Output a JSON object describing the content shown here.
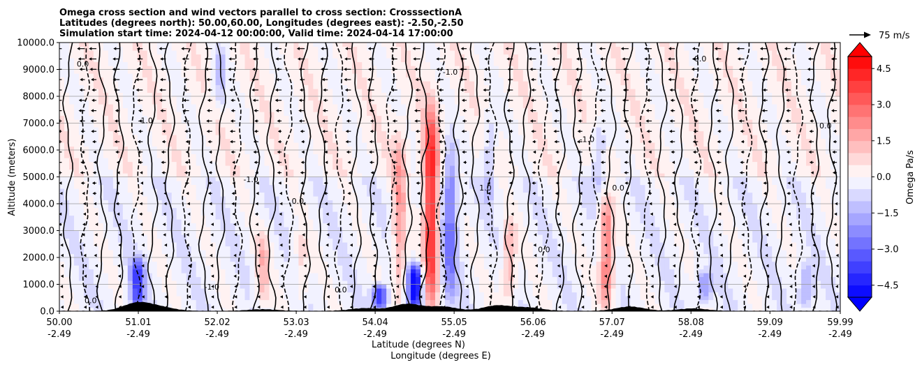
{
  "chart_data": {
    "type": "heatmap",
    "title_lines": [
      "Omega cross section and wind vectors parallel to cross section: CrosssectionA",
      "Latitudes (degrees north): 50.00,60.00, Longitudes (degrees east): -2.50,-2.50",
      "Simulation start time: 2024-04-12 00:00:00, Valid time: 2024-04-14 17:00:00"
    ],
    "ylabel": "Altitude (meters)",
    "xlabel_lines": [
      "Latitude (degrees N)",
      "Longitude (degrees E)"
    ],
    "ylim": [
      0,
      10000
    ],
    "xlim": [
      50.0,
      59.99
    ],
    "y_ticks": [
      {
        "value": 0,
        "label": "0.0"
      },
      {
        "value": 1000,
        "label": "1000.0"
      },
      {
        "value": 2000,
        "label": "2000.0"
      },
      {
        "value": 3000,
        "label": "3000.0"
      },
      {
        "value": 4000,
        "label": "4000.0"
      },
      {
        "value": 5000,
        "label": "5000.0"
      },
      {
        "value": 6000,
        "label": "6000.0"
      },
      {
        "value": 7000,
        "label": "7000.0"
      },
      {
        "value": 8000,
        "label": "8000.0"
      },
      {
        "value": 9000,
        "label": "9000.0"
      },
      {
        "value": 10000,
        "label": "10000.0"
      }
    ],
    "x_ticks": [
      {
        "value": 50.0,
        "lat": "50.00",
        "lon": "-2.49"
      },
      {
        "value": 51.01,
        "lat": "51.01",
        "lon": "-2.49"
      },
      {
        "value": 52.02,
        "lat": "52.02",
        "lon": "-2.49"
      },
      {
        "value": 53.03,
        "lat": "53.03",
        "lon": "-2.49"
      },
      {
        "value": 54.04,
        "lat": "54.04",
        "lon": "-2.49"
      },
      {
        "value": 55.05,
        "lat": "55.05",
        "lon": "-2.49"
      },
      {
        "value": 56.06,
        "lat": "56.06",
        "lon": "-2.49"
      },
      {
        "value": 57.07,
        "lat": "57.07",
        "lon": "-2.49"
      },
      {
        "value": 58.08,
        "lat": "58.08",
        "lon": "-2.49"
      },
      {
        "value": 59.09,
        "lat": "59.09",
        "lon": "-2.49"
      },
      {
        "value": 59.99,
        "lat": "59.99",
        "lon": "-2.49"
      }
    ],
    "grid": true,
    "colorbar": {
      "label": "Omega Pa/s",
      "range": [
        -5,
        5
      ],
      "extend": "both",
      "levels": [
        -5,
        -4.5,
        -4,
        -3.5,
        -3,
        -2.5,
        -2,
        -1.5,
        -1,
        -0.5,
        0,
        0.5,
        1,
        1.5,
        2,
        2.5,
        3,
        3.5,
        4,
        4.5,
        5
      ],
      "ticks": [
        {
          "value": -4.5,
          "label": "−4.5"
        },
        {
          "value": -3.0,
          "label": "−3.0"
        },
        {
          "value": -1.5,
          "label": "−1.5"
        },
        {
          "value": 0.0,
          "label": "0.0"
        },
        {
          "value": 1.5,
          "label": "1.5"
        },
        {
          "value": 3.0,
          "label": "3.0"
        },
        {
          "value": 4.5,
          "label": "4.5"
        }
      ]
    },
    "quiver_key": {
      "label": "75 m/s",
      "speed": 75
    },
    "omega_features": [
      {
        "lat": 54.75,
        "alt_min": 200,
        "alt_max": 7500,
        "value": 4.5
      },
      {
        "lat": 54.55,
        "alt_min": 150,
        "alt_max": 1800,
        "value": -4.8
      },
      {
        "lat": 54.1,
        "alt_min": 100,
        "alt_max": 1000,
        "value": -4.0
      },
      {
        "lat": 54.35,
        "alt_min": 300,
        "alt_max": 6500,
        "value": 2.0
      },
      {
        "lat": 55.0,
        "alt_min": 300,
        "alt_max": 6500,
        "value": -2.5
      },
      {
        "lat": 51.0,
        "alt_min": 100,
        "alt_max": 2000,
        "value": -3.5
      },
      {
        "lat": 57.0,
        "alt_min": 100,
        "alt_max": 4200,
        "value": 3.0
      },
      {
        "lat": 56.9,
        "alt_min": 4500,
        "alt_max": 7000,
        "value": -1.5
      },
      {
        "lat": 52.05,
        "alt_min": 7500,
        "alt_max": 9900,
        "value": -1.3
      },
      {
        "lat": 55.5,
        "alt_min": 4000,
        "alt_max": 7500,
        "value": -1.2
      },
      {
        "lat": 53.1,
        "alt_min": 300,
        "alt_max": 3000,
        "value": 1.0
      },
      {
        "lat": 55.75,
        "alt_min": 300,
        "alt_max": 3500,
        "value": 1.8
      },
      {
        "lat": 58.25,
        "alt_min": 300,
        "alt_max": 1500,
        "value": -2.0
      },
      {
        "lat": 59.55,
        "alt_min": 100,
        "alt_max": 1800,
        "value": -1.5
      },
      {
        "lat": 52.6,
        "alt_min": 100,
        "alt_max": 3000,
        "value": 1.5
      }
    ],
    "contour_labels": [
      {
        "lat": 50.3,
        "alt": 9100,
        "text": "0.0"
      },
      {
        "lat": 51.1,
        "alt": 7000,
        "text": "-1.0"
      },
      {
        "lat": 52.45,
        "alt": 4800,
        "text": "-1.0"
      },
      {
        "lat": 53.05,
        "alt": 4000,
        "text": "0.0"
      },
      {
        "lat": 55.0,
        "alt": 8800,
        "text": "-1.0"
      },
      {
        "lat": 56.75,
        "alt": 6300,
        "text": "-1.0"
      },
      {
        "lat": 57.15,
        "alt": 4500,
        "text": "0.0"
      },
      {
        "lat": 51.95,
        "alt": 800,
        "text": "-1.0"
      },
      {
        "lat": 59.8,
        "alt": 6800,
        "text": "0.0"
      },
      {
        "lat": 58.2,
        "alt": 9300,
        "text": "0.0"
      },
      {
        "lat": 55.45,
        "alt": 4500,
        "text": "1.0"
      },
      {
        "lat": 56.2,
        "alt": 2200,
        "text": "0.0"
      },
      {
        "lat": 53.6,
        "alt": 700,
        "text": "0.0"
      },
      {
        "lat": 50.4,
        "alt": 300,
        "text": "0.0"
      }
    ]
  }
}
